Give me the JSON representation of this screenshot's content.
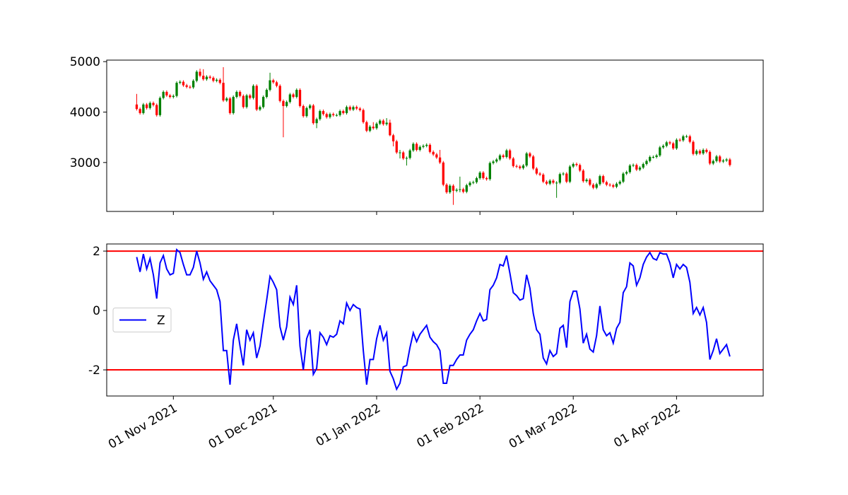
{
  "chart_data": [
    {
      "type": "candlestick",
      "x": [
        "2021-10-21",
        "2021-10-22",
        "2021-10-23",
        "2021-10-24",
        "2021-10-25",
        "2021-10-26",
        "2021-10-27",
        "2021-10-28",
        "2021-10-29",
        "2021-10-30",
        "2021-10-31",
        "2021-11-01",
        "2021-11-02",
        "2021-11-03",
        "2021-11-04",
        "2021-11-05",
        "2021-11-06",
        "2021-11-07",
        "2021-11-08",
        "2021-11-09",
        "2021-11-10",
        "2021-11-11",
        "2021-11-12",
        "2021-11-13",
        "2021-11-14",
        "2021-11-15",
        "2021-11-16",
        "2021-11-17",
        "2021-11-18",
        "2021-11-19",
        "2021-11-20",
        "2021-11-21",
        "2021-11-22",
        "2021-11-23",
        "2021-11-24",
        "2021-11-25",
        "2021-11-26",
        "2021-11-27",
        "2021-11-28",
        "2021-11-29",
        "2021-11-30",
        "2021-12-01",
        "2021-12-02",
        "2021-12-03",
        "2021-12-04",
        "2021-12-05",
        "2021-12-06",
        "2021-12-07",
        "2021-12-08",
        "2021-12-09",
        "2021-12-10",
        "2021-12-11",
        "2021-12-12",
        "2021-12-13",
        "2021-12-14",
        "2021-12-15",
        "2021-12-16",
        "2021-12-17",
        "2021-12-18",
        "2021-12-19",
        "2021-12-20",
        "2021-12-21",
        "2021-12-22",
        "2021-12-23",
        "2021-12-24",
        "2021-12-25",
        "2021-12-26",
        "2021-12-27",
        "2021-12-28",
        "2021-12-29",
        "2021-12-30",
        "2021-12-31",
        "2022-01-01",
        "2022-01-02",
        "2022-01-03",
        "2022-01-04",
        "2022-01-05",
        "2022-01-06",
        "2022-01-07",
        "2022-01-08",
        "2022-01-09",
        "2022-01-10",
        "2022-01-11",
        "2022-01-12",
        "2022-01-13",
        "2022-01-14",
        "2022-01-15",
        "2022-01-16",
        "2022-01-17",
        "2022-01-18",
        "2022-01-19",
        "2022-01-20",
        "2022-01-21",
        "2022-01-22",
        "2022-01-23",
        "2022-01-24",
        "2022-01-25",
        "2022-01-26",
        "2022-01-27",
        "2022-01-28",
        "2022-01-29",
        "2022-01-30",
        "2022-01-31",
        "2022-02-01",
        "2022-02-02",
        "2022-02-03",
        "2022-02-04",
        "2022-02-05",
        "2022-02-06",
        "2022-02-07",
        "2022-02-08",
        "2022-02-09",
        "2022-02-10",
        "2022-02-11",
        "2022-02-12",
        "2022-02-13",
        "2022-02-14",
        "2022-02-15",
        "2022-02-16",
        "2022-02-17",
        "2022-02-18",
        "2022-02-19",
        "2022-02-20",
        "2022-02-21",
        "2022-02-22",
        "2022-02-23",
        "2022-02-24",
        "2022-02-25",
        "2022-02-26",
        "2022-02-27",
        "2022-02-28",
        "2022-03-01",
        "2022-03-02",
        "2022-03-03",
        "2022-03-04",
        "2022-03-05",
        "2022-03-06",
        "2022-03-07",
        "2022-03-08",
        "2022-03-09",
        "2022-03-10",
        "2022-03-11",
        "2022-03-12",
        "2022-03-13",
        "2022-03-14",
        "2022-03-15",
        "2022-03-16",
        "2022-03-17",
        "2022-03-18",
        "2022-03-19",
        "2022-03-20",
        "2022-03-21",
        "2022-03-22",
        "2022-03-23",
        "2022-03-24",
        "2022-03-25",
        "2022-03-26",
        "2022-03-27",
        "2022-03-28",
        "2022-03-29",
        "2022-03-30",
        "2022-03-31",
        "2022-04-01",
        "2022-04-02",
        "2022-04-03",
        "2022-04-04",
        "2022-04-05",
        "2022-04-06",
        "2022-04-07",
        "2022-04-08",
        "2022-04-09",
        "2022-04-10",
        "2022-04-11",
        "2022-04-12",
        "2022-04-13",
        "2022-04-14",
        "2022-04-15",
        "2022-04-16",
        "2022-04-17"
      ],
      "open": [
        4150,
        4060,
        3980,
        4150,
        4080,
        4180,
        4140,
        3940,
        4280,
        4400,
        4330,
        4300,
        4320,
        4580,
        4600,
        4530,
        4500,
        4490,
        4620,
        4800,
        4720,
        4650,
        4700,
        4680,
        4620,
        4640,
        4580,
        4230,
        4270,
        3980,
        4300,
        4400,
        4320,
        4100,
        4330,
        4280,
        4520,
        4050,
        4100,
        4300,
        4440,
        4630,
        4590,
        4520,
        4220,
        4120,
        4200,
        4350,
        4300,
        4440,
        4120,
        3920,
        4080,
        4130,
        3780,
        3860,
        4020,
        3960,
        3900,
        3960,
        3940,
        3940,
        4020,
        3980,
        4100,
        4050,
        4100,
        4070,
        4040,
        3800,
        3630,
        3710,
        3680,
        3770,
        3830,
        3760,
        3790,
        3540,
        3420,
        3200,
        3200,
        3080,
        3090,
        3240,
        3370,
        3250,
        3310,
        3330,
        3350,
        3210,
        3160,
        3100,
        3000,
        2560,
        2410,
        2540,
        2440,
        2460,
        2470,
        2420,
        2550,
        2600,
        2610,
        2690,
        2800,
        2690,
        2670,
        2990,
        3020,
        3060,
        3140,
        3110,
        3240,
        3080,
        2930,
        2920,
        2890,
        2940,
        3180,
        3120,
        2880,
        2780,
        2760,
        2620,
        2580,
        2640,
        2600,
        2600,
        2770,
        2780,
        2620,
        2920,
        2970,
        2950,
        2840,
        2630,
        2660,
        2560,
        2500,
        2570,
        2730,
        2610,
        2560,
        2550,
        2520,
        2580,
        2620,
        2780,
        2810,
        2940,
        2950,
        2860,
        2900,
        2970,
        3030,
        3110,
        3110,
        3140,
        3300,
        3330,
        3400,
        3380,
        3280,
        3450,
        3440,
        3520,
        3520,
        3410,
        3170,
        3230,
        3180,
        3250,
        3210,
        2980,
        3030,
        3120,
        3020,
        3040,
        3060
      ],
      "high": [
        4360,
        4090,
        4180,
        4180,
        4210,
        4210,
        4170,
        4310,
        4430,
        4430,
        4360,
        4350,
        4610,
        4630,
        4630,
        4560,
        4530,
        4650,
        4830,
        4860,
        4850,
        4730,
        4730,
        4710,
        4670,
        4670,
        4890,
        4300,
        4300,
        4330,
        4430,
        4430,
        4350,
        4360,
        4360,
        4550,
        4550,
        4130,
        4330,
        4470,
        4780,
        4660,
        4620,
        4550,
        4250,
        4230,
        4380,
        4380,
        4470,
        4470,
        4150,
        4110,
        4160,
        4160,
        3890,
        4050,
        4050,
        3990,
        3990,
        3990,
        3970,
        4050,
        4050,
        4130,
        4130,
        4130,
        4130,
        4100,
        4070,
        3830,
        3740,
        3800,
        3800,
        3860,
        3860,
        3880,
        3850,
        3570,
        3450,
        3250,
        3230,
        3120,
        3270,
        3400,
        3400,
        3340,
        3360,
        3380,
        3380,
        3240,
        3190,
        3250,
        3030,
        2590,
        2570,
        2570,
        2490,
        2720,
        2500,
        2580,
        2630,
        2640,
        2720,
        2830,
        2830,
        2720,
        3020,
        3050,
        3090,
        3170,
        3170,
        3270,
        3270,
        3110,
        2960,
        2950,
        2970,
        3210,
        3210,
        3150,
        2910,
        2810,
        2790,
        2650,
        2670,
        2670,
        2630,
        2800,
        2810,
        2810,
        2950,
        3000,
        3000,
        2980,
        2870,
        2690,
        2690,
        2590,
        2600,
        2760,
        2760,
        2640,
        2590,
        2580,
        2610,
        2650,
        2810,
        2840,
        2970,
        2980,
        2980,
        2930,
        3000,
        3060,
        3140,
        3140,
        3170,
        3330,
        3360,
        3430,
        3430,
        3410,
        3480,
        3480,
        3550,
        3550,
        3550,
        3440,
        3260,
        3260,
        3280,
        3280,
        3240,
        3060,
        3150,
        3150,
        3070,
        3090,
        3090
      ],
      "low": [
        4030,
        3950,
        3950,
        4050,
        4050,
        4110,
        3910,
        3910,
        4250,
        4300,
        4270,
        4270,
        4290,
        4550,
        4500,
        4470,
        4460,
        4460,
        4590,
        4690,
        4620,
        4620,
        4650,
        4590,
        4590,
        4550,
        4200,
        4200,
        3950,
        3950,
        4270,
        4290,
        4070,
        4070,
        4250,
        4250,
        4020,
        4020,
        4070,
        4270,
        4410,
        4560,
        4490,
        4190,
        3500,
        4090,
        4170,
        4270,
        4270,
        4090,
        3890,
        3890,
        4050,
        3750,
        3680,
        3830,
        3930,
        3870,
        3870,
        3910,
        3910,
        3910,
        3950,
        3950,
        4020,
        4020,
        4040,
        4010,
        3770,
        3600,
        3600,
        3650,
        3650,
        3740,
        3730,
        3730,
        3520,
        3320,
        3170,
        3080,
        3050,
        2940,
        3060,
        3210,
        3220,
        3220,
        3280,
        3300,
        3180,
        3130,
        3070,
        2970,
        2530,
        2380,
        2380,
        2160,
        2410,
        2410,
        2390,
        2390,
        2520,
        2570,
        2580,
        2660,
        2660,
        2640,
        2640,
        2960,
        2990,
        3030,
        3080,
        3080,
        3050,
        2900,
        2890,
        2860,
        2860,
        2910,
        3090,
        2850,
        2750,
        2730,
        2590,
        2550,
        2550,
        2570,
        2300,
        2570,
        2740,
        2590,
        2590,
        2890,
        2920,
        2810,
        2600,
        2600,
        2530,
        2470,
        2470,
        2540,
        2580,
        2530,
        2520,
        2490,
        2490,
        2550,
        2590,
        2750,
        2780,
        2910,
        2830,
        2830,
        2870,
        2940,
        3000,
        3080,
        3080,
        3110,
        3270,
        3300,
        3350,
        3250,
        3250,
        3410,
        3410,
        3490,
        3380,
        3140,
        3140,
        3150,
        3150,
        3180,
        2950,
        2950,
        3000,
        2990,
        2990,
        3010,
        2920
      ],
      "close": [
        4060,
        3980,
        4150,
        4080,
        4180,
        4140,
        3940,
        4280,
        4400,
        4330,
        4300,
        4320,
        4580,
        4600,
        4530,
        4500,
        4490,
        4620,
        4800,
        4720,
        4650,
        4700,
        4680,
        4620,
        4640,
        4580,
        4230,
        4270,
        3980,
        4300,
        4400,
        4320,
        4100,
        4330,
        4280,
        4520,
        4050,
        4100,
        4300,
        4440,
        4630,
        4590,
        4520,
        4220,
        4120,
        4200,
        4350,
        4300,
        4440,
        4120,
        3920,
        4080,
        4130,
        3780,
        3860,
        4020,
        3960,
        3900,
        3960,
        3940,
        3940,
        4020,
        3980,
        4100,
        4050,
        4100,
        4070,
        4040,
        3800,
        3630,
        3710,
        3680,
        3770,
        3830,
        3760,
        3790,
        3540,
        3420,
        3200,
        3200,
        3080,
        3090,
        3240,
        3370,
        3250,
        3310,
        3330,
        3350,
        3210,
        3160,
        3100,
        3000,
        2560,
        2410,
        2540,
        2440,
        2460,
        2470,
        2420,
        2550,
        2600,
        2610,
        2690,
        2800,
        2690,
        2670,
        2990,
        3020,
        3060,
        3140,
        3110,
        3240,
        3080,
        2930,
        2920,
        2890,
        2940,
        3180,
        3120,
        2880,
        2780,
        2760,
        2620,
        2580,
        2640,
        2600,
        2600,
        2770,
        2780,
        2620,
        2920,
        2970,
        2950,
        2840,
        2630,
        2660,
        2560,
        2500,
        2570,
        2730,
        2610,
        2560,
        2550,
        2520,
        2580,
        2620,
        2780,
        2810,
        2940,
        2950,
        2860,
        2900,
        2970,
        3030,
        3110,
        3110,
        3140,
        3300,
        3330,
        3400,
        3380,
        3280,
        3450,
        3440,
        3520,
        3520,
        3410,
        3170,
        3230,
        3180,
        3250,
        3210,
        2980,
        3030,
        3120,
        3020,
        3040,
        3060,
        2950
      ],
      "up_color": "green",
      "down_color": "red",
      "xlim": [
        "2021-10-12",
        "2022-04-27"
      ],
      "ylim": [
        2030,
        5030
      ],
      "yticks": [
        3000,
        4000,
        5000
      ]
    },
    {
      "type": "line",
      "series": [
        {
          "name": "Z",
          "color": "blue",
          "values": [
            1.8,
            1.3,
            1.9,
            1.4,
            1.75,
            1.2,
            0.4,
            1.6,
            1.85,
            1.4,
            1.2,
            1.25,
            2.05,
            1.95,
            1.55,
            1.2,
            1.2,
            1.45,
            2.0,
            1.6,
            1.05,
            1.3,
            1.0,
            0.85,
            0.7,
            0.3,
            -1.35,
            -1.35,
            -2.5,
            -1.0,
            -0.45,
            -1.2,
            -1.85,
            -0.65,
            -1.0,
            -0.75,
            -1.6,
            -1.2,
            -0.4,
            0.35,
            1.15,
            0.95,
            0.7,
            -0.55,
            -1.0,
            -0.55,
            0.45,
            0.2,
            0.85,
            -1.2,
            -2.0,
            -0.95,
            -0.65,
            -2.15,
            -1.95,
            -0.75,
            -0.9,
            -1.15,
            -0.85,
            -0.9,
            -0.8,
            -0.35,
            -0.45,
            0.25,
            0.0,
            0.2,
            0.1,
            0.05,
            -1.35,
            -2.5,
            -1.65,
            -1.65,
            -0.95,
            -0.5,
            -1.0,
            -0.75,
            -2.05,
            -2.3,
            -2.65,
            -2.45,
            -1.9,
            -1.85,
            -1.25,
            -0.75,
            -1.05,
            -0.8,
            -0.65,
            -0.5,
            -0.9,
            -1.05,
            -1.15,
            -1.35,
            -2.45,
            -2.45,
            -1.85,
            -1.85,
            -1.65,
            -1.5,
            -1.5,
            -1.0,
            -0.8,
            -0.65,
            -0.35,
            -0.1,
            -0.35,
            -0.3,
            0.7,
            0.85,
            1.1,
            1.55,
            1.5,
            1.85,
            1.25,
            0.6,
            0.5,
            0.35,
            0.4,
            1.2,
            0.75,
            -0.1,
            -0.65,
            -0.8,
            -1.6,
            -1.8,
            -1.35,
            -1.55,
            -1.45,
            -0.6,
            -0.5,
            -1.25,
            0.3,
            0.65,
            0.65,
            0.05,
            -1.1,
            -0.8,
            -1.3,
            -1.4,
            -0.85,
            0.15,
            -0.65,
            -0.85,
            -0.75,
            -1.1,
            -0.6,
            -0.4,
            0.6,
            0.8,
            1.6,
            1.5,
            0.85,
            1.1,
            1.55,
            1.8,
            1.95,
            1.75,
            1.7,
            1.95,
            1.9,
            1.9,
            1.6,
            1.1,
            1.55,
            1.4,
            1.55,
            1.45,
            0.95,
            -0.1,
            0.1,
            -0.15,
            0.1,
            -0.4,
            -1.65,
            -1.35,
            -0.95,
            -1.45,
            -1.3,
            -1.15,
            -1.55
          ]
        }
      ],
      "hlines": [
        {
          "value": 2,
          "color": "red"
        },
        {
          "value": -2,
          "color": "red"
        }
      ],
      "ylim": [
        -2.88,
        2.24
      ],
      "yticks": [
        -2,
        0,
        2
      ],
      "xticks": [
        {
          "value": "2021-11-01",
          "label": "01 Nov 2021"
        },
        {
          "value": "2021-12-01",
          "label": "01 Dec 2021"
        },
        {
          "value": "2022-01-01",
          "label": "01 Jan 2022"
        },
        {
          "value": "2022-02-01",
          "label": "01 Feb 2022"
        },
        {
          "value": "2022-03-01",
          "label": "01 Mar 2022"
        },
        {
          "value": "2022-04-01",
          "label": "01 Apr 2022"
        }
      ],
      "legend": "center left"
    }
  ]
}
